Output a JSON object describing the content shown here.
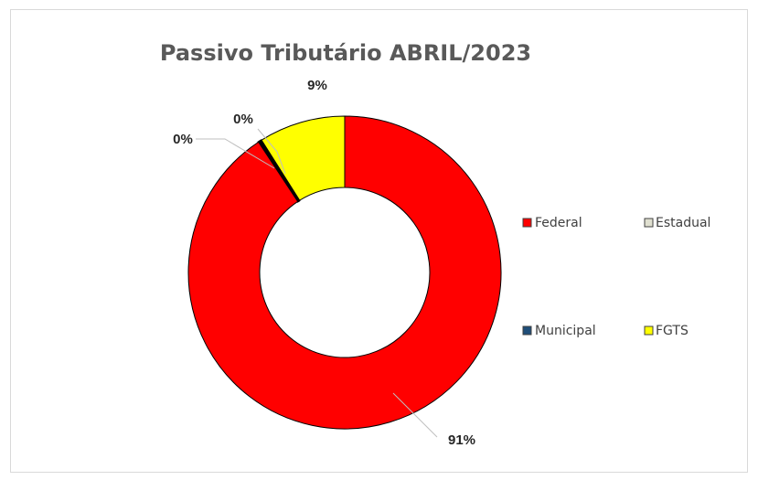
{
  "chart_data": {
    "type": "pie",
    "title": "Passivo Tributário ABRIL/2023",
    "categories": [
      "Federal",
      "Estadual",
      "Municipal",
      "FGTS"
    ],
    "values": [
      91,
      0,
      0,
      9
    ],
    "data_labels": [
      "91%",
      "0%",
      "0%",
      "9%"
    ],
    "colors": [
      "#ff0000",
      "#e0e0d0",
      "#1f4e79",
      "#ffff00"
    ],
    "donut": true,
    "legend_position": "right"
  }
}
